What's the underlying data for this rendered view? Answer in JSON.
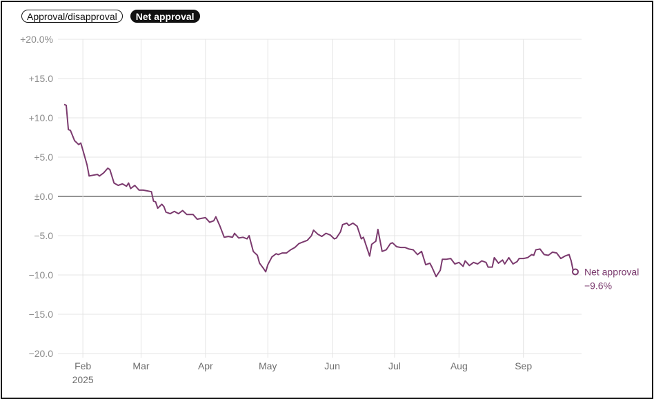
{
  "toggle": {
    "options": [
      "Approval/disapproval",
      "Net approval"
    ],
    "selected": "Net approval"
  },
  "colors": {
    "line": "#7b3a6e",
    "grid": "#e4e4e4",
    "zero": "#555555"
  },
  "chart_data": {
    "type": "line",
    "ylim": [
      -20,
      20
    ],
    "yticks": [
      20,
      15,
      10,
      5,
      0,
      -5,
      -10,
      -15,
      -20
    ],
    "ytick_labels": [
      "+20.0%",
      "+15.0",
      "+10.0",
      "+5.0",
      "±0.0",
      "−5.0",
      "−10.0",
      "−15.0",
      "−20.0"
    ],
    "xlim": [
      "2025-01-20",
      "2025-09-29"
    ],
    "xticks": [
      {
        "date": "2025-02-01",
        "label": "Feb",
        "sublabel": "2025"
      },
      {
        "date": "2025-03-01",
        "label": "Mar",
        "sublabel": ""
      },
      {
        "date": "2025-04-01",
        "label": "Apr",
        "sublabel": ""
      },
      {
        "date": "2025-05-01",
        "label": "May",
        "sublabel": ""
      },
      {
        "date": "2025-06-01",
        "label": "Jun",
        "sublabel": ""
      },
      {
        "date": "2025-07-01",
        "label": "Jul",
        "sublabel": ""
      },
      {
        "date": "2025-08-01",
        "label": "Aug",
        "sublabel": ""
      },
      {
        "date": "2025-09-01",
        "label": "Sep",
        "sublabel": ""
      }
    ],
    "series": [
      {
        "name": "Net approval",
        "end_label": "−9.6%",
        "points": [
          [
            "2025-01-23",
            11.7
          ],
          [
            "2025-01-24",
            11.6
          ],
          [
            "2025-01-25",
            8.5
          ],
          [
            "2025-01-26",
            8.4
          ],
          [
            "2025-01-28",
            7.1
          ],
          [
            "2025-01-30",
            6.6
          ],
          [
            "2025-01-31",
            6.8
          ],
          [
            "2025-02-01",
            5.9
          ],
          [
            "2025-02-03",
            4.0
          ],
          [
            "2025-02-04",
            2.6
          ],
          [
            "2025-02-06",
            2.7
          ],
          [
            "2025-02-08",
            2.8
          ],
          [
            "2025-02-09",
            2.6
          ],
          [
            "2025-02-11",
            3.0
          ],
          [
            "2025-02-13",
            3.6
          ],
          [
            "2025-02-14",
            3.4
          ],
          [
            "2025-02-16",
            1.7
          ],
          [
            "2025-02-18",
            1.4
          ],
          [
            "2025-02-20",
            1.6
          ],
          [
            "2025-02-22",
            1.3
          ],
          [
            "2025-02-23",
            1.7
          ],
          [
            "2025-02-24",
            1.0
          ],
          [
            "2025-02-26",
            1.4
          ],
          [
            "2025-02-28",
            0.8
          ],
          [
            "2025-03-02",
            0.8
          ],
          [
            "2025-03-04",
            0.7
          ],
          [
            "2025-03-06",
            0.6
          ],
          [
            "2025-03-07",
            -0.6
          ],
          [
            "2025-03-08",
            -0.7
          ],
          [
            "2025-03-09",
            -1.5
          ],
          [
            "2025-03-11",
            -1.0
          ],
          [
            "2025-03-12",
            -1.3
          ],
          [
            "2025-03-13",
            -2.0
          ],
          [
            "2025-03-15",
            -2.2
          ],
          [
            "2025-03-17",
            -1.9
          ],
          [
            "2025-03-19",
            -2.2
          ],
          [
            "2025-03-21",
            -1.8
          ],
          [
            "2025-03-23",
            -2.3
          ],
          [
            "2025-03-26",
            -2.3
          ],
          [
            "2025-03-28",
            -2.9
          ],
          [
            "2025-03-30",
            -2.8
          ],
          [
            "2025-04-01",
            -2.7
          ],
          [
            "2025-04-03",
            -3.3
          ],
          [
            "2025-04-05",
            -3.1
          ],
          [
            "2025-04-06",
            -2.6
          ],
          [
            "2025-04-08",
            -3.8
          ],
          [
            "2025-04-10",
            -5.2
          ],
          [
            "2025-04-12",
            -5.1
          ],
          [
            "2025-04-14",
            -5.2
          ],
          [
            "2025-04-15",
            -4.7
          ],
          [
            "2025-04-17",
            -5.3
          ],
          [
            "2025-04-19",
            -5.2
          ],
          [
            "2025-04-21",
            -5.4
          ],
          [
            "2025-04-22",
            -5.0
          ],
          [
            "2025-04-24",
            -7.0
          ],
          [
            "2025-04-26",
            -7.5
          ],
          [
            "2025-04-27",
            -8.5
          ],
          [
            "2025-04-29",
            -9.2
          ],
          [
            "2025-04-30",
            -9.6
          ],
          [
            "2025-05-01",
            -8.7
          ],
          [
            "2025-05-03",
            -7.7
          ],
          [
            "2025-05-05",
            -7.3
          ],
          [
            "2025-05-06",
            -7.4
          ],
          [
            "2025-05-08",
            -7.2
          ],
          [
            "2025-05-10",
            -7.2
          ],
          [
            "2025-05-12",
            -6.8
          ],
          [
            "2025-05-14",
            -6.5
          ],
          [
            "2025-05-16",
            -6.0
          ],
          [
            "2025-05-18",
            -5.8
          ],
          [
            "2025-05-20",
            -5.6
          ],
          [
            "2025-05-22",
            -5.0
          ],
          [
            "2025-05-23",
            -4.3
          ],
          [
            "2025-05-25",
            -4.8
          ],
          [
            "2025-05-27",
            -5.1
          ],
          [
            "2025-05-29",
            -4.7
          ],
          [
            "2025-05-31",
            -4.9
          ],
          [
            "2025-06-02",
            -5.4
          ],
          [
            "2025-06-03",
            -5.3
          ],
          [
            "2025-06-05",
            -4.5
          ],
          [
            "2025-06-06",
            -3.6
          ],
          [
            "2025-06-08",
            -3.4
          ],
          [
            "2025-06-09",
            -3.7
          ],
          [
            "2025-06-11",
            -3.4
          ],
          [
            "2025-06-13",
            -3.8
          ],
          [
            "2025-06-15",
            -5.4
          ],
          [
            "2025-06-16",
            -5.2
          ],
          [
            "2025-06-19",
            -7.6
          ],
          [
            "2025-06-20",
            -6.1
          ],
          [
            "2025-06-22",
            -5.7
          ],
          [
            "2025-06-23",
            -4.2
          ],
          [
            "2025-06-25",
            -7.0
          ],
          [
            "2025-06-27",
            -6.8
          ],
          [
            "2025-06-29",
            -6.0
          ],
          [
            "2025-06-30",
            -5.9
          ],
          [
            "2025-07-02",
            -6.4
          ],
          [
            "2025-07-04",
            -6.5
          ],
          [
            "2025-07-06",
            -6.5
          ],
          [
            "2025-07-08",
            -6.7
          ],
          [
            "2025-07-10",
            -6.8
          ],
          [
            "2025-07-12",
            -7.4
          ],
          [
            "2025-07-14",
            -7.0
          ],
          [
            "2025-07-16",
            -8.7
          ],
          [
            "2025-07-18",
            -8.5
          ],
          [
            "2025-07-19",
            -9.0
          ],
          [
            "2025-07-21",
            -10.2
          ],
          [
            "2025-07-23",
            -9.4
          ],
          [
            "2025-07-24",
            -8.0
          ],
          [
            "2025-07-26",
            -8.0
          ],
          [
            "2025-07-28",
            -7.9
          ],
          [
            "2025-07-30",
            -8.6
          ],
          [
            "2025-08-01",
            -8.4
          ],
          [
            "2025-08-03",
            -8.9
          ],
          [
            "2025-08-04",
            -8.2
          ],
          [
            "2025-08-06",
            -8.8
          ],
          [
            "2025-08-08",
            -8.4
          ],
          [
            "2025-08-10",
            -8.6
          ],
          [
            "2025-08-12",
            -8.2
          ],
          [
            "2025-08-14",
            -8.4
          ],
          [
            "2025-08-15",
            -9.0
          ],
          [
            "2025-08-17",
            -9.0
          ],
          [
            "2025-08-18",
            -7.8
          ],
          [
            "2025-08-20",
            -8.5
          ],
          [
            "2025-08-22",
            -8.1
          ],
          [
            "2025-08-23",
            -8.6
          ],
          [
            "2025-08-25",
            -7.8
          ],
          [
            "2025-08-27",
            -8.6
          ],
          [
            "2025-08-29",
            -8.3
          ],
          [
            "2025-08-30",
            -7.9
          ],
          [
            "2025-09-01",
            -7.9
          ],
          [
            "2025-09-03",
            -7.8
          ],
          [
            "2025-09-05",
            -7.4
          ],
          [
            "2025-09-06",
            -7.5
          ],
          [
            "2025-09-07",
            -6.8
          ],
          [
            "2025-09-09",
            -6.7
          ],
          [
            "2025-09-11",
            -7.4
          ],
          [
            "2025-09-13",
            -7.5
          ],
          [
            "2025-09-15",
            -7.1
          ],
          [
            "2025-09-17",
            -7.2
          ],
          [
            "2025-09-19",
            -7.9
          ],
          [
            "2025-09-21",
            -7.6
          ],
          [
            "2025-09-23",
            -7.4
          ],
          [
            "2025-09-24",
            -8.2
          ],
          [
            "2025-09-25",
            -9.5
          ],
          [
            "2025-09-26",
            -9.6
          ]
        ]
      }
    ]
  }
}
